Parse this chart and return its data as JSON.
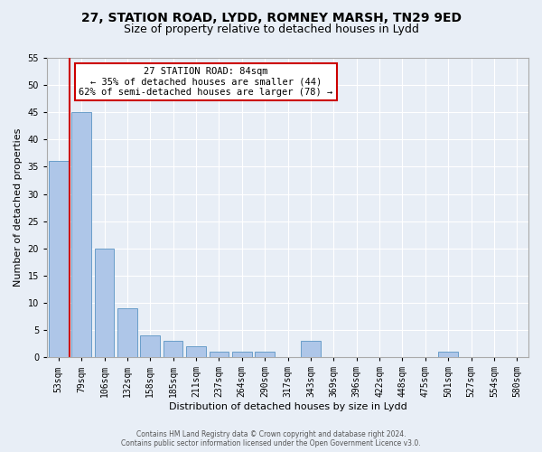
{
  "title1": "27, STATION ROAD, LYDD, ROMNEY MARSH, TN29 9ED",
  "title2": "Size of property relative to detached houses in Lydd",
  "xlabel": "Distribution of detached houses by size in Lydd",
  "ylabel": "Number of detached properties",
  "bar_labels": [
    "53sqm",
    "79sqm",
    "106sqm",
    "132sqm",
    "158sqm",
    "185sqm",
    "211sqm",
    "237sqm",
    "264sqm",
    "290sqm",
    "317sqm",
    "343sqm",
    "369sqm",
    "396sqm",
    "422sqm",
    "448sqm",
    "475sqm",
    "501sqm",
    "527sqm",
    "554sqm",
    "580sqm"
  ],
  "bar_values": [
    36,
    45,
    20,
    9,
    4,
    3,
    2,
    1,
    1,
    1,
    0,
    3,
    0,
    0,
    0,
    0,
    0,
    1,
    0,
    0,
    0
  ],
  "bar_color": "#aec6e8",
  "bar_edgecolor": "#6a9ec9",
  "annotation_line1": "27 STATION ROAD: 84sqm",
  "annotation_line2": "← 35% of detached houses are smaller (44)",
  "annotation_line3": "62% of semi-detached houses are larger (78) →",
  "annotation_box_color": "#ffffff",
  "annotation_box_edgecolor": "#cc0000",
  "ylim": [
    0,
    55
  ],
  "yticks": [
    0,
    5,
    10,
    15,
    20,
    25,
    30,
    35,
    40,
    45,
    50,
    55
  ],
  "background_color": "#e8eef6",
  "grid_color": "#ffffff",
  "footer1": "Contains HM Land Registry data © Crown copyright and database right 2024.",
  "footer2": "Contains public sector information licensed under the Open Government Licence v3.0.",
  "red_line_color": "#cc0000",
  "red_line_x": 0.5,
  "title1_fontsize": 10,
  "title2_fontsize": 9,
  "xlabel_fontsize": 8,
  "ylabel_fontsize": 8,
  "tick_fontsize": 7,
  "annotation_fontsize": 7.5,
  "footer_fontsize": 5.5
}
